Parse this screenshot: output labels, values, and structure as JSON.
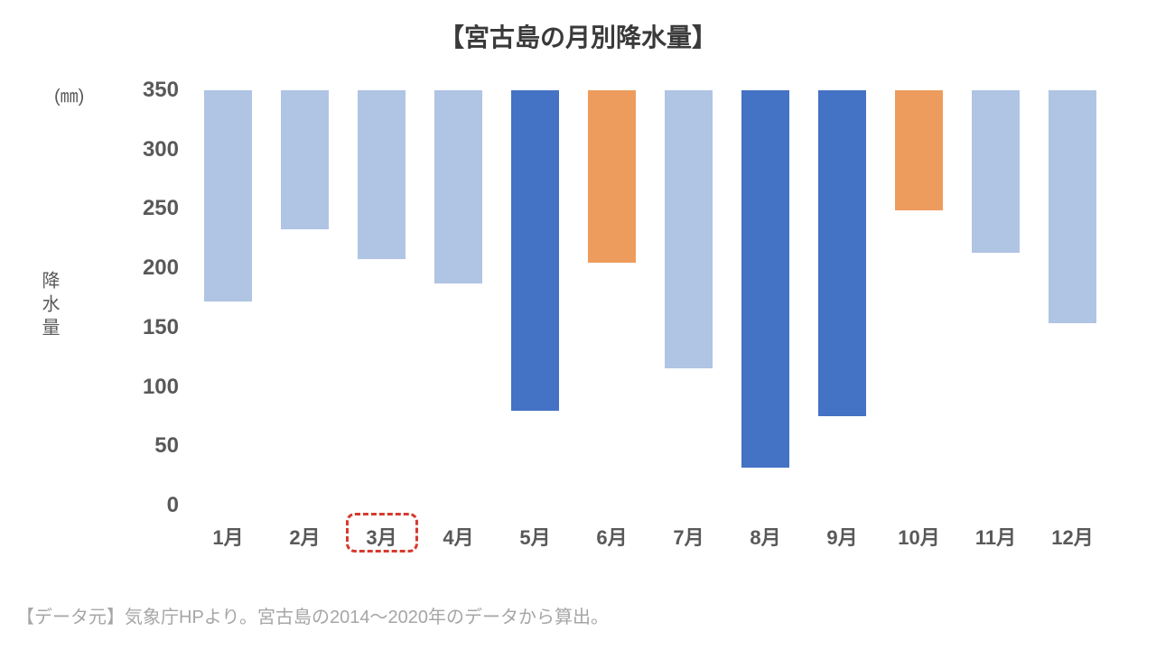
{
  "chart": {
    "type": "bar",
    "title": "【宮古島の月別降水量】",
    "title_fontsize": 28,
    "title_color": "#3a3a3a",
    "unit_label": "(㎜)",
    "unit_label_fontsize": 20,
    "y_axis_label": "降水量",
    "y_axis_label_fontsize": 20,
    "source_note": "【データ元】気象庁HPより。宮古島の2014～2020年のデータから算出。",
    "source_fontsize": 20,
    "background_color": "#ffffff",
    "ymin": 0,
    "ymax": 350,
    "ytick_step": 50,
    "ytick_fontsize": 24,
    "xtick_fontsize": 22,
    "categories": [
      "1月",
      "2月",
      "3月",
      "4月",
      "5月",
      "6月",
      "7月",
      "8月",
      "9月",
      "10月",
      "11月",
      "12月"
    ],
    "values": [
      178,
      117,
      142,
      163,
      270,
      145,
      234,
      318,
      275,
      101,
      137,
      196
    ],
    "bar_colors": [
      "#b0c4e4",
      "#b0c4e4",
      "#b0c4e4",
      "#b0c4e4",
      "#4472c4",
      "#ed9c5d",
      "#b0c4e4",
      "#4472c4",
      "#4472c4",
      "#ed9c5d",
      "#b0c4e4",
      "#b0c4e4"
    ],
    "highlight_index": 2,
    "highlight_border_color": "#d63a2f",
    "light_bar_color": "#b0c4e4",
    "dark_bar_color": "#4472c4",
    "orange_bar_color": "#ed9c5d",
    "axis_label_color": "#595959",
    "source_color": "#a6a6a6"
  }
}
